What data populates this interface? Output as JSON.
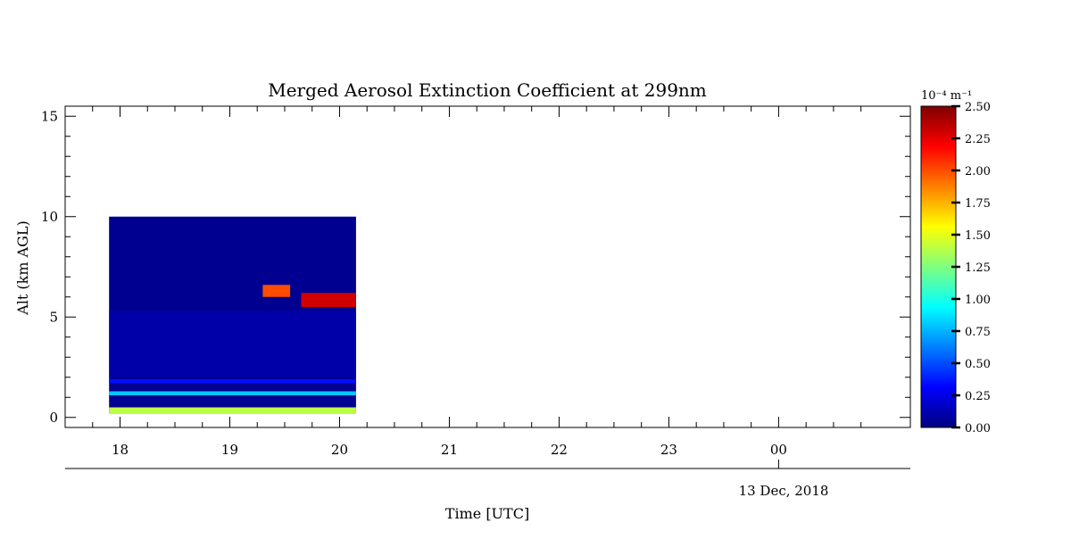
{
  "chart_data": {
    "type": "heatmap",
    "title": "Merged Aerosol Extinction Coefficient at 299nm",
    "xlabel": "Time [UTC]",
    "ylabel": "Alt (km AGL)",
    "date_label": "13 Dec, 2018",
    "x_ticks": [
      "18",
      "19",
      "20",
      "21",
      "22",
      "23",
      "00"
    ],
    "x_tick_hours": [
      18,
      19,
      20,
      21,
      22,
      23,
      24
    ],
    "xlim": [
      17.5,
      25.2
    ],
    "ylim": [
      -0.5,
      15.5
    ],
    "y_ticks": [
      "0",
      "5",
      "10",
      "15"
    ],
    "data_extent": {
      "time_start": 17.9,
      "time_end": 20.15,
      "alt_bottom": 0.2,
      "alt_top": 10
    },
    "colorbar": {
      "unit": "10⁻⁴ m⁻¹",
      "range": [
        0,
        2.5
      ],
      "tick_labels": [
        "0.00",
        "0.25",
        "0.50",
        "0.75",
        "1.00",
        "1.25",
        "1.50",
        "1.75",
        "2.00",
        "2.25",
        "2.50"
      ],
      "colormap": "jet"
    },
    "features": [
      {
        "name": "surface layer",
        "alt_km": [
          0.2,
          0.5
        ],
        "time": [
          17.9,
          20.15
        ],
        "value": 1.4
      },
      {
        "name": "layer 1.2 km",
        "alt_km": [
          1.1,
          1.3
        ],
        "time": [
          17.9,
          20.15
        ],
        "value": 0.8
      },
      {
        "name": "layer 1.8 km",
        "alt_km": [
          1.7,
          1.9
        ],
        "time": [
          17.9,
          20.15
        ],
        "value": 0.35
      },
      {
        "name": "aerosol layer 5.8 km",
        "alt_km": [
          5.5,
          6.2
        ],
        "time": [
          19.65,
          20.15
        ],
        "value": 2.3
      },
      {
        "name": "plume 6.4 km",
        "alt_km": [
          6.0,
          6.6
        ],
        "time": [
          19.3,
          19.55
        ],
        "value": 2.0
      }
    ],
    "grid": false
  }
}
